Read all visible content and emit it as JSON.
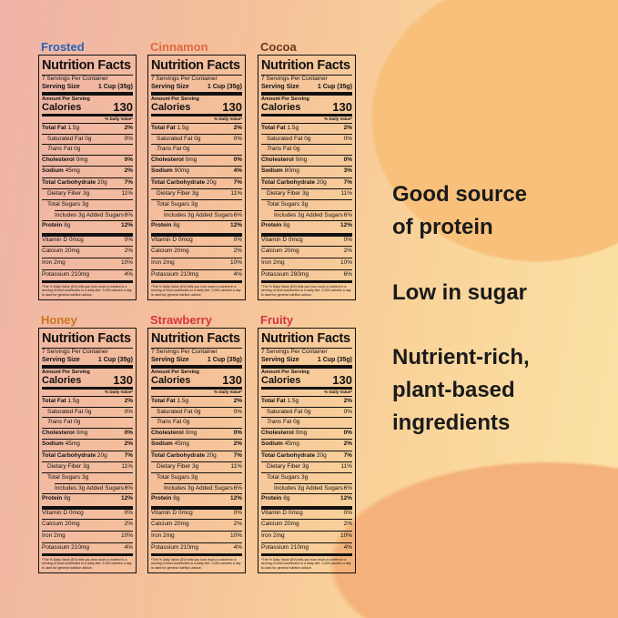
{
  "panels": [
    {
      "flavor": "Frosted",
      "title": "Nutrition Facts",
      "servings": "7 Servings Per Container",
      "serving_size_label": "Serving Size",
      "serving_size": "1 Cup (35g)",
      "amount_per_serving": "Amount Per Serving",
      "calories_label": "Calories",
      "calories": "130",
      "dv_header": "% Daily Value*",
      "rows": [
        {
          "name": "Total Fat",
          "amount": "1.5g",
          "dv": "2%"
        },
        {
          "name": "Saturated Fat",
          "amount": "0g",
          "dv": "0%"
        },
        {
          "name": "Trans",
          "amount": "Fat 0g"
        },
        {
          "name": "Cholesterol",
          "amount": "0mg",
          "dv": "0%"
        },
        {
          "name": "Sodium",
          "amount": "45mg",
          "dv": "2%"
        },
        {
          "name": "Total Carbohydrate",
          "amount": "20g",
          "dv": "7%"
        },
        {
          "name": "Dietary Fiber",
          "amount": "3g",
          "dv": "11%"
        },
        {
          "name": "Total Sugars",
          "amount": "3g"
        },
        {
          "name": "Includes 3g Added Sugars",
          "dv": "6%"
        },
        {
          "name": "Protein",
          "amount": "8g",
          "dv": "12%"
        },
        {
          "name": "Vitamin D",
          "amount": "0mcg",
          "dv": "0%"
        },
        {
          "name": "Calcium",
          "amount": "20mg",
          "dv": "2%"
        },
        {
          "name": "Iron",
          "amount": "2mg",
          "dv": "10%"
        },
        {
          "name": "Potassium",
          "amount": "210mg",
          "dv": "4%"
        }
      ],
      "footnote": "*The % Daily Value (DV) tells you how much a nutrient in a serving of food contributes to a daily diet. 2,000 calories a day is used for general nutrition advice."
    },
    {
      "flavor": "Cinnamon",
      "title": "Nutrition Facts",
      "servings": "7 Servings Per Container",
      "serving_size_label": "Serving Size",
      "serving_size": "1 Cup (35g)",
      "amount_per_serving": "Amount Per Serving",
      "calories_label": "Calories",
      "calories": "130",
      "dv_header": "% Daily Value*",
      "rows": [
        {
          "name": "Total Fat",
          "amount": "1.5g",
          "dv": "2%"
        },
        {
          "name": "Saturated Fat",
          "amount": "0g",
          "dv": "0%"
        },
        {
          "name": "Trans",
          "amount": "Fat 0g"
        },
        {
          "name": "Cholesterol",
          "amount": "0mg",
          "dv": "0%"
        },
        {
          "name": "Sodium",
          "amount": "90mg",
          "dv": "4%"
        },
        {
          "name": "Total Carbohydrate",
          "amount": "20g",
          "dv": "7%"
        },
        {
          "name": "Dietary Fiber",
          "amount": "3g",
          "dv": "11%"
        },
        {
          "name": "Total Sugars",
          "amount": "3g"
        },
        {
          "name": "Includes 3g Added Sugars",
          "dv": "6%"
        },
        {
          "name": "Protein",
          "amount": "8g",
          "dv": "12%"
        },
        {
          "name": "Vitamin D",
          "amount": "0mcg",
          "dv": "0%"
        },
        {
          "name": "Calcium",
          "amount": "20mg",
          "dv": "2%"
        },
        {
          "name": "Iron",
          "amount": "2mg",
          "dv": "10%"
        },
        {
          "name": "Potassium",
          "amount": "210mg",
          "dv": "4%"
        }
      ],
      "footnote": "*The % Daily Value (DV) tells you how much a nutrient in a serving of food contributes to a daily diet. 2,000 calories a day is used for general nutrition advice."
    },
    {
      "flavor": "Cocoa",
      "title": "Nutrition Facts",
      "servings": "7 Servings Per Container",
      "serving_size_label": "Serving Size",
      "serving_size": "1 Cup (35g)",
      "amount_per_serving": "Amount Per Serving",
      "calories_label": "Calories",
      "calories": "130",
      "dv_header": "% Daily Value*",
      "rows": [
        {
          "name": "Total Fat",
          "amount": "1.5g",
          "dv": "2%"
        },
        {
          "name": "Saturated Fat",
          "amount": "0g",
          "dv": "0%"
        },
        {
          "name": "Trans",
          "amount": "Fat 0g"
        },
        {
          "name": "Cholesterol",
          "amount": "0mg",
          "dv": "0%"
        },
        {
          "name": "Sodium",
          "amount": "80mg",
          "dv": "3%"
        },
        {
          "name": "Total Carbohydrate",
          "amount": "20g",
          "dv": "7%"
        },
        {
          "name": "Dietary Fiber",
          "amount": "3g",
          "dv": "11%"
        },
        {
          "name": "Total Sugars",
          "amount": "3g"
        },
        {
          "name": "Includes 3g Added Sugars",
          "dv": "6%"
        },
        {
          "name": "Protein",
          "amount": "8g",
          "dv": "12%"
        },
        {
          "name": "Vitamin D",
          "amount": "0mcg",
          "dv": "0%"
        },
        {
          "name": "Calcium",
          "amount": "20mg",
          "dv": "2%"
        },
        {
          "name": "Iron",
          "amount": "2mg",
          "dv": "10%"
        },
        {
          "name": "Potassium",
          "amount": "280mg",
          "dv": "6%"
        }
      ],
      "footnote": "*The % Daily Value (DV) tells you how much a nutrient in a serving of food contributes to a daily diet. 2,000 calories a day is used for general nutrition advice."
    },
    {
      "flavor": "Honey",
      "title": "Nutrition Facts",
      "servings": "7 Servings Per Container",
      "serving_size_label": "Serving Size",
      "serving_size": "1 Cup (35g)",
      "amount_per_serving": "Amount Per Serving",
      "calories_label": "Calories",
      "calories": "130",
      "dv_header": "% Daily Value*",
      "rows": [
        {
          "name": "Total Fat",
          "amount": "1.5g",
          "dv": "2%"
        },
        {
          "name": "Saturated Fat",
          "amount": "0g",
          "dv": "0%"
        },
        {
          "name": "Trans",
          "amount": "Fat 0g"
        },
        {
          "name": "Cholesterol",
          "amount": "0mg",
          "dv": "0%"
        },
        {
          "name": "Sodium",
          "amount": "45mg",
          "dv": "2%"
        },
        {
          "name": "Total Carbohydrate",
          "amount": "20g",
          "dv": "7%"
        },
        {
          "name": "Dietary Fiber",
          "amount": "3g",
          "dv": "11%"
        },
        {
          "name": "Total Sugars",
          "amount": "3g"
        },
        {
          "name": "Includes 3g Added Sugars",
          "dv": "6%"
        },
        {
          "name": "Protein",
          "amount": "8g",
          "dv": "12%"
        },
        {
          "name": "Vitamin D",
          "amount": "0mcg",
          "dv": "0%"
        },
        {
          "name": "Calcium",
          "amount": "20mg",
          "dv": "2%"
        },
        {
          "name": "Iron",
          "amount": "2mg",
          "dv": "10%"
        },
        {
          "name": "Potassium",
          "amount": "210mg",
          "dv": "4%"
        }
      ],
      "footnote": "*The % Daily Value (DV) tells you how much a nutrient in a serving of food contributes to a daily diet. 2,000 calories a day is used for general nutrition advice."
    },
    {
      "flavor": "Strawberry",
      "title": "Nutrition Facts",
      "servings": "7 Servings Per Container",
      "serving_size_label": "Serving Size",
      "serving_size": "1 Cup (35g)",
      "amount_per_serving": "Amount Per Serving",
      "calories_label": "Calories",
      "calories": "130",
      "dv_header": "% Daily Value*",
      "rows": [
        {
          "name": "Total Fat",
          "amount": "1.5g",
          "dv": "2%"
        },
        {
          "name": "Saturated Fat",
          "amount": "0g",
          "dv": "0%"
        },
        {
          "name": "Trans",
          "amount": "Fat 0g"
        },
        {
          "name": "Cholesterol",
          "amount": "0mg",
          "dv": "0%"
        },
        {
          "name": "Sodium",
          "amount": "45mg",
          "dv": "2%"
        },
        {
          "name": "Total Carbohydrate",
          "amount": "20g",
          "dv": "7%"
        },
        {
          "name": "Dietary Fiber",
          "amount": "3g",
          "dv": "11%"
        },
        {
          "name": "Total Sugars",
          "amount": "3g"
        },
        {
          "name": "Includes 3g Added Sugars",
          "dv": "6%"
        },
        {
          "name": "Protein",
          "amount": "8g",
          "dv": "12%"
        },
        {
          "name": "Vitamin D",
          "amount": "0mcg",
          "dv": "0%"
        },
        {
          "name": "Calcium",
          "amount": "20mg",
          "dv": "2%"
        },
        {
          "name": "Iron",
          "amount": "2mg",
          "dv": "10%"
        },
        {
          "name": "Potassium",
          "amount": "210mg",
          "dv": "4%"
        }
      ],
      "footnote": "*The % Daily Value (DV) tells you how much a nutrient in a serving of food contributes to a daily diet. 2,000 calories a day is used for general nutrition advice."
    },
    {
      "flavor": "Fruity",
      "title": "Nutrition Facts",
      "servings": "7 Servings Per Container",
      "serving_size_label": "Serving Size",
      "serving_size": "1 Cup (35g)",
      "amount_per_serving": "Amount Per Serving",
      "calories_label": "Calories",
      "calories": "130",
      "dv_header": "% Daily Value*",
      "rows": [
        {
          "name": "Total Fat",
          "amount": "1.5g",
          "dv": "2%"
        },
        {
          "name": "Saturated Fat",
          "amount": "0g",
          "dv": "0%"
        },
        {
          "name": "Trans",
          "amount": "Fat 0g"
        },
        {
          "name": "Cholesterol",
          "amount": "0mg",
          "dv": "0%"
        },
        {
          "name": "Sodium",
          "amount": "45mg",
          "dv": "2%"
        },
        {
          "name": "Total Carbohydrate",
          "amount": "20g",
          "dv": "7%"
        },
        {
          "name": "Dietary Fiber",
          "amount": "3g",
          "dv": "11%"
        },
        {
          "name": "Total Sugars",
          "amount": "3g"
        },
        {
          "name": "Includes 3g Added Sugars",
          "dv": "6%"
        },
        {
          "name": "Protein",
          "amount": "8g",
          "dv": "12%"
        },
        {
          "name": "Vitamin D",
          "amount": "0mcg",
          "dv": "0%"
        },
        {
          "name": "Calcium",
          "amount": "20mg",
          "dv": "2%"
        },
        {
          "name": "Iron",
          "amount": "2mg",
          "dv": "10%"
        },
        {
          "name": "Potassium",
          "amount": "210mg",
          "dv": "4%"
        }
      ],
      "footnote": "*The % Daily Value (DV) tells you how much a nutrient in a serving of food contributes to a daily diet. 2,000 calories a day is used for general nutrition advice."
    }
  ],
  "benefits": [
    "Good source of protein",
    "Low in sugar",
    "Nutrient-rich, plant-based ingredients"
  ]
}
